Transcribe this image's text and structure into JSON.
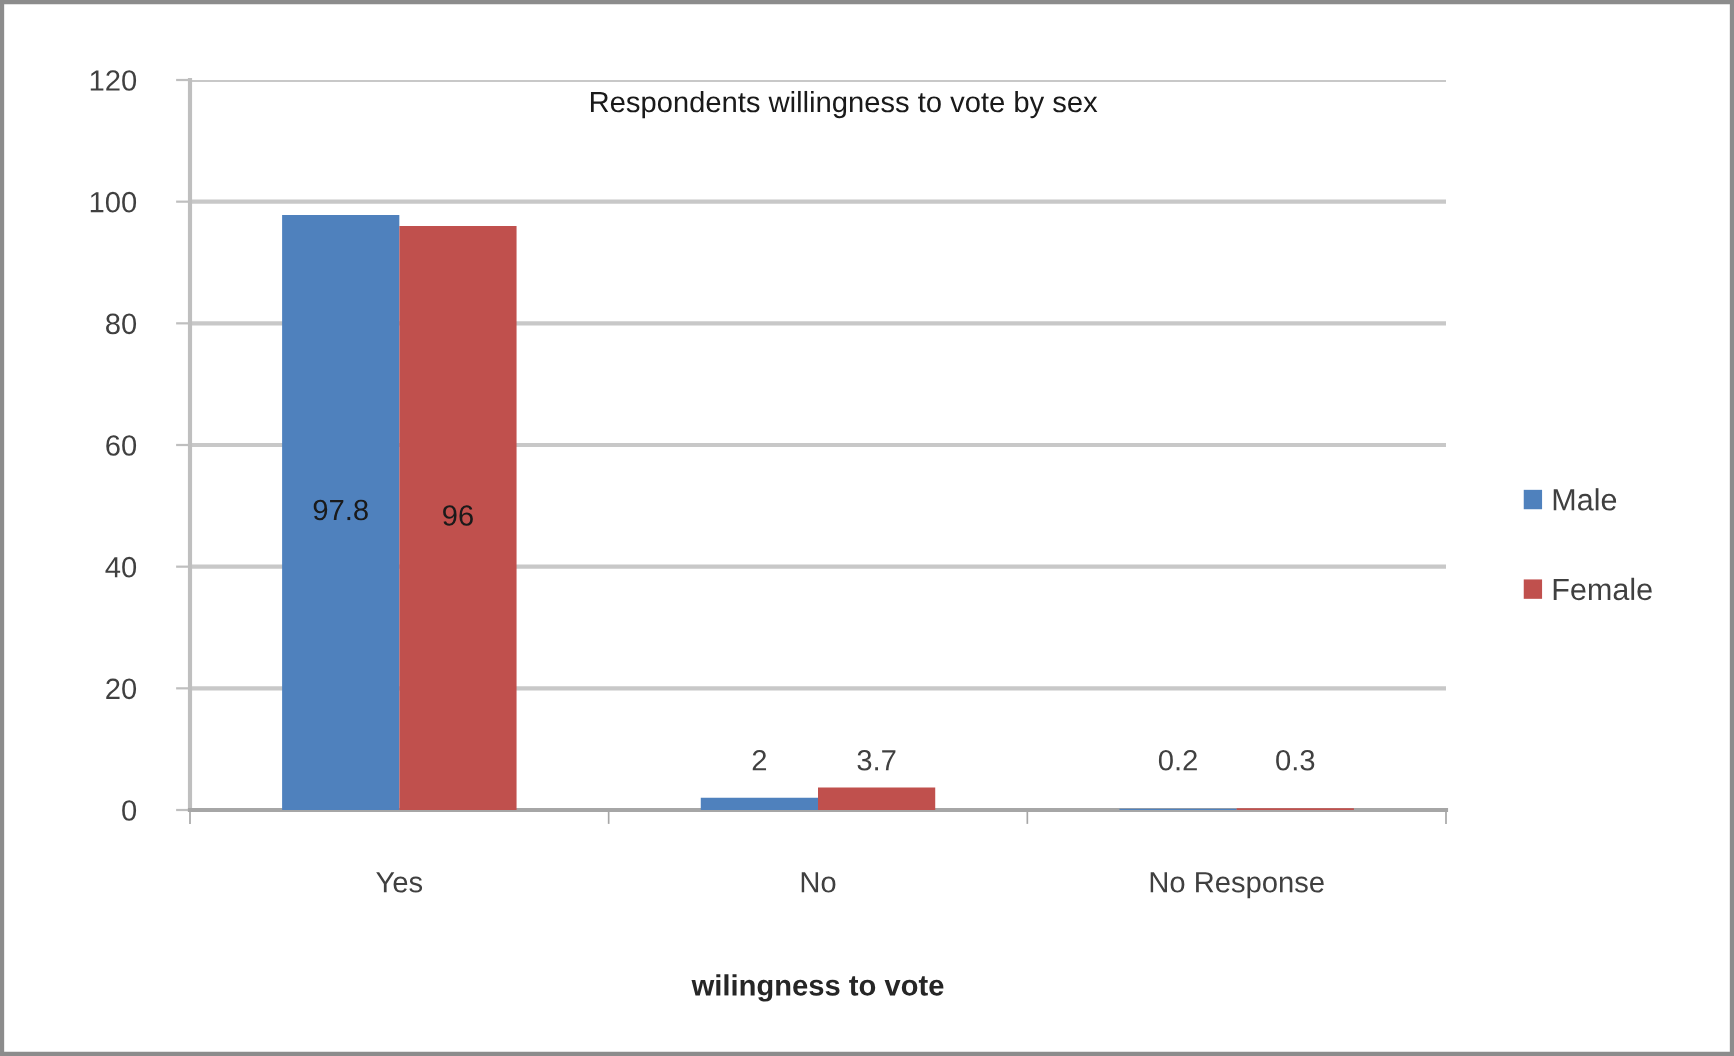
{
  "chart_data": {
    "type": "bar",
    "title": "Respondents willingness to vote by sex",
    "xlabel": "wilingness to vote",
    "categories": [
      "Yes",
      "No",
      "No Response"
    ],
    "series": [
      {
        "name": "Male",
        "color": "#4f81bd",
        "values": [
          97.8,
          2,
          0.2
        ]
      },
      {
        "name": "Female",
        "color": "#c0504d",
        "values": [
          96,
          3.7,
          0.3
        ]
      }
    ],
    "ylim": [
      0,
      120
    ],
    "yticks": [
      0,
      20,
      40,
      60,
      80,
      100,
      120
    ],
    "grid": "y",
    "legend": "right",
    "data_labels": true
  }
}
